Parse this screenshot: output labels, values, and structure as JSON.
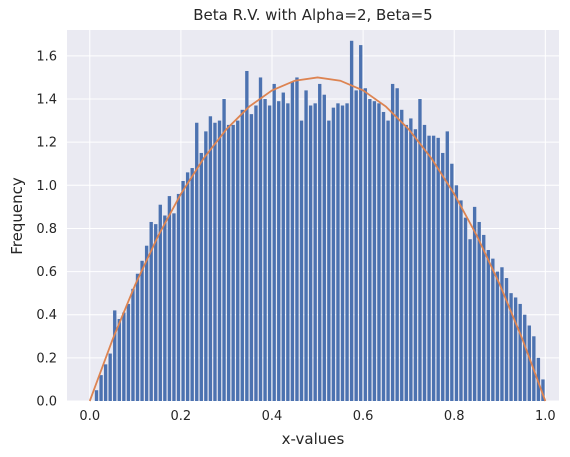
{
  "chart_data": {
    "type": "bar",
    "title": "Beta R.V. with Alpha=2, Beta=5",
    "xlabel": "x-values",
    "ylabel": "Frequency",
    "xlim": [
      -0.05,
      1.03
    ],
    "ylim": [
      0.0,
      1.72
    ],
    "xticks": [
      0.0,
      0.2,
      0.4,
      0.6,
      0.8,
      1.0
    ],
    "xtick_labels": [
      "0.0",
      "0.2",
      "0.4",
      "0.6",
      "0.8",
      "1.0"
    ],
    "yticks": [
      0.0,
      0.2,
      0.4,
      0.6,
      0.8,
      1.0,
      1.2,
      1.4,
      1.6
    ],
    "ytick_labels": [
      "0.0",
      "0.2",
      "0.4",
      "0.6",
      "0.8",
      "1.0",
      "1.2",
      "1.4",
      "1.6"
    ],
    "grid": true,
    "colors": {
      "background": "#eaeaf2",
      "grid": "#ffffff",
      "bars": "#4c72b0",
      "curve": "#dd8452",
      "text": "#262626"
    },
    "histogram": {
      "bin_start": 0.0,
      "bin_width": 0.01,
      "values": [
        0.0,
        0.05,
        0.12,
        0.17,
        0.22,
        0.42,
        0.38,
        0.41,
        0.45,
        0.52,
        0.59,
        0.65,
        0.72,
        0.83,
        0.82,
        0.91,
        0.86,
        0.95,
        0.87,
        0.96,
        1.02,
        1.06,
        1.08,
        1.29,
        1.15,
        1.25,
        1.32,
        1.29,
        1.3,
        1.4,
        1.28,
        1.28,
        1.3,
        1.35,
        1.53,
        1.33,
        1.37,
        1.5,
        1.4,
        1.37,
        1.47,
        1.39,
        1.43,
        1.38,
        1.48,
        1.5,
        1.3,
        1.44,
        1.37,
        1.38,
        1.47,
        1.42,
        1.3,
        1.36,
        1.38,
        1.37,
        1.38,
        1.67,
        1.44,
        1.65,
        1.45,
        1.4,
        1.39,
        1.38,
        1.34,
        1.3,
        1.47,
        1.45,
        1.35,
        1.28,
        1.31,
        1.26,
        1.4,
        1.28,
        1.23,
        1.23,
        1.22,
        1.15,
        1.25,
        1.1,
        1.0,
        0.93,
        0.85,
        0.75,
        0.9,
        0.83,
        0.77,
        0.7,
        0.66,
        0.6,
        0.62,
        0.57,
        0.5,
        0.48,
        0.45,
        0.4,
        0.35,
        0.3,
        0.2,
        0.1
      ]
    },
    "curve": {
      "name": "",
      "x": [
        0.0,
        0.05,
        0.1,
        0.15,
        0.2,
        0.25,
        0.3,
        0.35,
        0.4,
        0.45,
        0.5,
        0.55,
        0.6,
        0.65,
        0.7,
        0.75,
        0.8,
        0.85,
        0.9,
        0.95,
        1.0
      ],
      "y": [
        0.0,
        0.285,
        0.54,
        0.765,
        0.96,
        1.125,
        1.26,
        1.365,
        1.44,
        1.485,
        1.5,
        1.485,
        1.44,
        1.365,
        1.26,
        1.125,
        0.96,
        0.765,
        0.54,
        0.285,
        0.0
      ]
    }
  }
}
